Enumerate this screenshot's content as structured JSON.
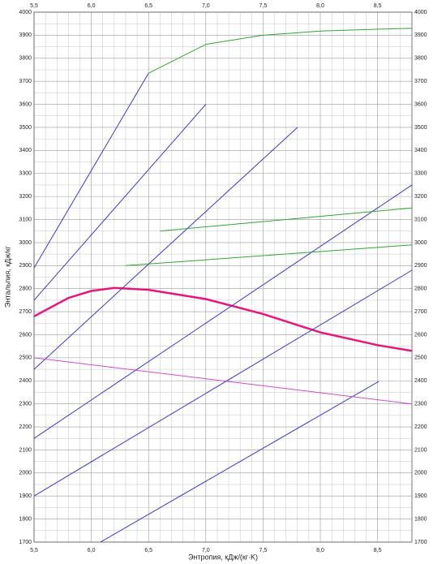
{
  "chart_data": {
    "type": "line",
    "x_label": "Энтропия, кДж/(кг·K)",
    "y_label": "Энтальпия, кДж/кг",
    "xlim": [
      5.5,
      8.8
    ],
    "ylim": [
      1700,
      4000
    ],
    "xticks": [
      {
        "value": 5.5,
        "label": "5,5"
      },
      {
        "value": 6.0,
        "label": "6,0"
      },
      {
        "value": 6.5,
        "label": "6,5"
      },
      {
        "value": 7.0,
        "label": "7,0"
      },
      {
        "value": 7.5,
        "label": "7,5"
      },
      {
        "value": 8.0,
        "label": "8,0"
      },
      {
        "value": 8.5,
        "label": "8,5"
      }
    ],
    "yticks": [
      1700,
      1800,
      1900,
      2000,
      2100,
      2200,
      2300,
      2400,
      2500,
      2600,
      2700,
      2800,
      2900,
      3000,
      3100,
      3200,
      3300,
      3400,
      3500,
      3600,
      3700,
      3800,
      3900,
      4000
    ],
    "grid": true,
    "series": [
      {
        "color": "#e8157d",
        "x": [
          5.5,
          5.8,
          6.0,
          6.2,
          6.5,
          7.0,
          7.5,
          8.0,
          8.5,
          8.8
        ],
        "values": [
          2680,
          2760,
          2790,
          2803,
          2795,
          2755,
          2690,
          2610,
          2555,
          2530
        ]
      },
      {
        "color": "#3b3bc4",
        "x": [
          5.5,
          6.5
        ],
        "values": [
          2890,
          3735
        ]
      },
      {
        "color": "#2ea82e",
        "x": [
          6.5,
          7.0,
          7.5,
          8.0,
          8.5,
          8.8
        ],
        "values": [
          3735,
          3860,
          3900,
          3918,
          3926,
          3930
        ]
      },
      {
        "color": "#3b3bc4",
        "x": [
          6.08,
          8.51
        ],
        "values": [
          1700,
          2397
        ]
      },
      {
        "color": "#3b3bc4",
        "x": [
          5.5,
          8.8
        ],
        "values": [
          1900,
          2880
        ]
      },
      {
        "color": "#3b3bc4",
        "x": [
          5.5,
          8.8
        ],
        "values": [
          2150,
          3250
        ]
      },
      {
        "color": "#3b3bc4",
        "x": [
          5.5,
          7.8
        ],
        "values": [
          2450,
          3500
        ]
      },
      {
        "color": "#3b3bc4",
        "x": [
          5.5,
          7.0
        ],
        "values": [
          2750,
          3600
        ]
      },
      {
        "color": "#2ea82e",
        "x": [
          6.6,
          8.8
        ],
        "values": [
          3050,
          3150
        ]
      },
      {
        "color": "#2ea82e",
        "x": [
          6.3,
          8.8
        ],
        "values": [
          2900,
          2990
        ]
      },
      {
        "color": "#d04bd0",
        "x": [
          5.5,
          8.8
        ],
        "values": [
          2500,
          2300
        ]
      }
    ]
  }
}
